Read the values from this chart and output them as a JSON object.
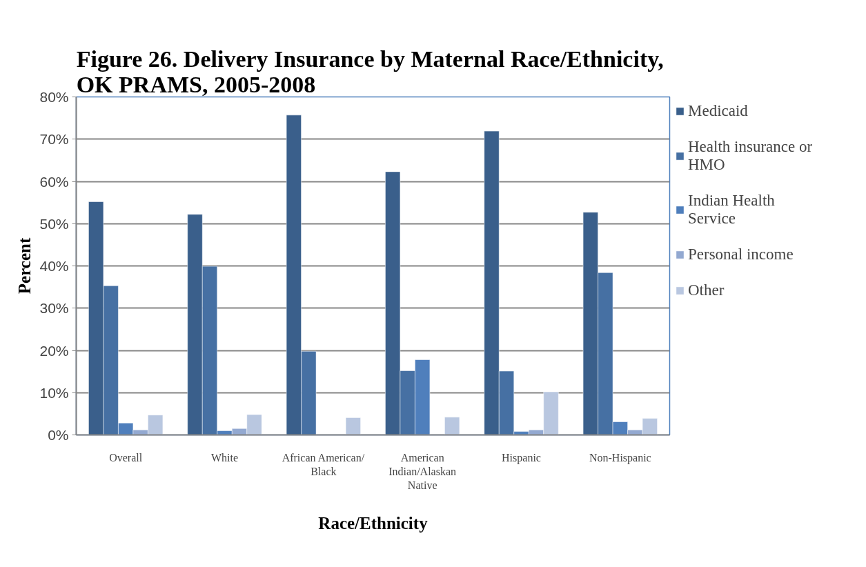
{
  "chart_data": {
    "type": "bar",
    "title": "Figure 26.  Delivery Insurance by Maternal Race/Ethnicity, OK PRAMS, 2005-2008",
    "xlabel": "Race/Ethnicity",
    "ylabel": "Percent",
    "categories": [
      "Overall",
      "White",
      "African American/\nBlack",
      "American\nIndian/Alaskan\nNative",
      "Hispanic",
      "Non-Hispanic"
    ],
    "series": [
      {
        "name": "Medicaid",
        "color": "#3a5f8b",
        "values": [
          55.2,
          52.2,
          75.7,
          62.3,
          71.9,
          52.7
        ]
      },
      {
        "name": "Health insurance or HMO",
        "color": "#4670a3",
        "values": [
          35.3,
          39.9,
          19.8,
          15.2,
          15.1,
          38.4
        ]
      },
      {
        "name": "Indian Health Service",
        "color": "#4f7fbc",
        "values": [
          2.8,
          1.0,
          null,
          17.8,
          0.8,
          3.1
        ]
      },
      {
        "name": "Personal income",
        "color": "#93a9d1",
        "values": [
          1.2,
          1.5,
          null,
          null,
          1.2,
          1.2
        ]
      },
      {
        "name": "Other",
        "color": "#b9c7e0",
        "values": [
          4.7,
          4.8,
          4.1,
          4.2,
          10.2,
          3.9
        ]
      }
    ],
    "ylim": [
      0,
      80
    ],
    "yticks": [
      {
        "value": 0,
        "label": "0%"
      },
      {
        "value": 10,
        "label": "10%"
      },
      {
        "value": 20,
        "label": "20%"
      },
      {
        "value": 30,
        "label": "30%"
      },
      {
        "value": 40,
        "label": "40%"
      },
      {
        "value": 50,
        "label": "50%"
      },
      {
        "value": 60,
        "label": "60%"
      },
      {
        "value": 70,
        "label": "70%"
      },
      {
        "value": 80,
        "label": "80%"
      }
    ],
    "grid": "y",
    "legend": "right"
  }
}
